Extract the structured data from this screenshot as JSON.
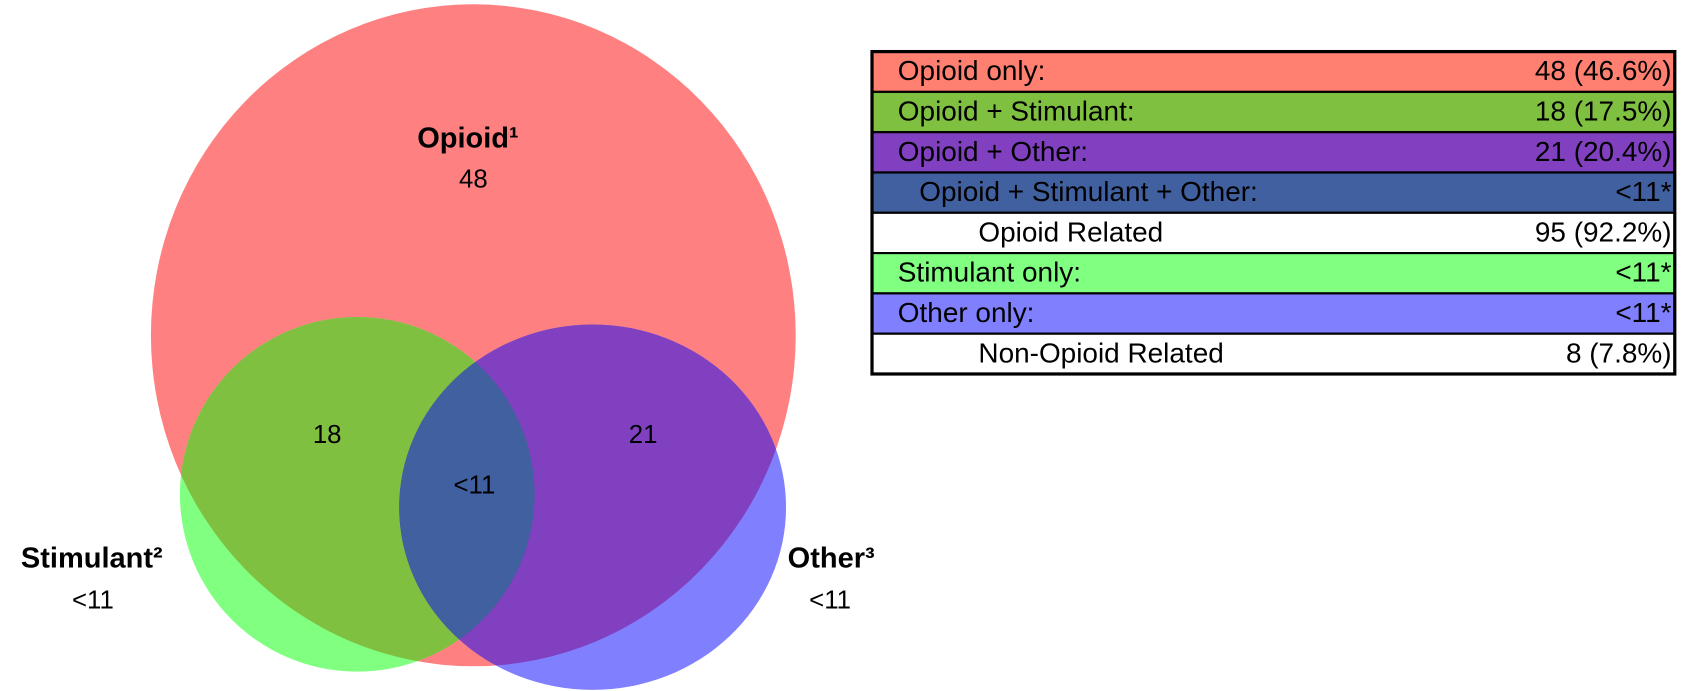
{
  "venn": {
    "sets": [
      {
        "label": "Opioid¹",
        "count": "48",
        "color": "#ff8080"
      },
      {
        "label": "Stimulant²",
        "count": "<11",
        "color": "#80ff80"
      },
      {
        "label": "Other³",
        "count": "<11",
        "color": "#8080ff"
      }
    ],
    "overlaps": [
      {
        "count": "18",
        "color": "#80c040"
      },
      {
        "count": "21",
        "color": "#8040c0"
      },
      {
        "count": "<11",
        "color": "#4060a0"
      }
    ]
  },
  "table": {
    "rows": [
      {
        "label": "Opioid only:",
        "value": "48 (46.6%)",
        "color": "#ff8070"
      },
      {
        "label": "Opioid + Stimulant:",
        "value": "18 (17.5%)",
        "color": "#80c040"
      },
      {
        "label": "Opioid + Other:",
        "value": "21 (20.4%)",
        "color": "#8040c0"
      },
      {
        "label": "Opioid + Stimulant + Other:",
        "value": "<11*",
        "color": "#4060a0"
      },
      {
        "label": "Opioid Related",
        "value": "95 (92.2%)",
        "color": "#ffffff"
      },
      {
        "label": "Stimulant only:",
        "value": "<11*",
        "color": "#80ff80"
      },
      {
        "label": "Other only:",
        "value": "<11*",
        "color": "#8080ff"
      },
      {
        "label": "Non-Opioid Related",
        "value": "8 (7.8%)",
        "color": "#ffffff"
      }
    ]
  }
}
